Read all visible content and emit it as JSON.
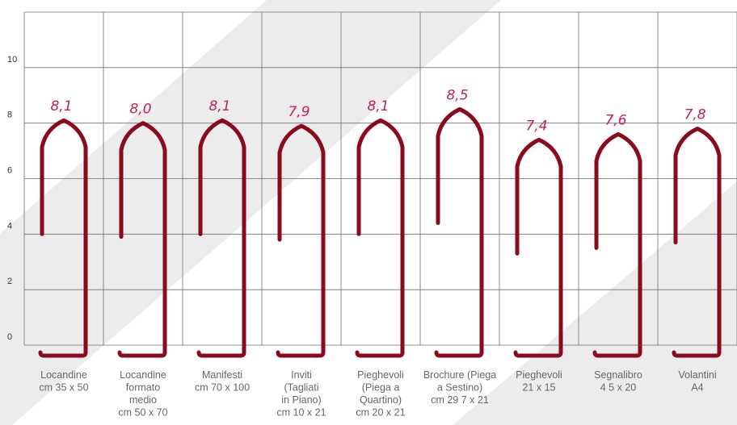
{
  "chart_data": {
    "type": "bar",
    "title": "",
    "xlabel": "",
    "ylabel": "",
    "ylim": [
      0,
      12
    ],
    "y_ticks": [
      "0",
      "2",
      "4",
      "6",
      "8",
      "10"
    ],
    "grid": true,
    "categories": [
      [
        "Locandine",
        "cm 35 x 50"
      ],
      [
        "Locandine",
        "formato",
        "medio",
        "cm 50 x 70"
      ],
      [
        "Manifesti",
        "cm 70 x 100"
      ],
      [
        "Inviti",
        "(Tagliati",
        "in Piano)",
        "cm 10 x 21"
      ],
      [
        "Pieghevoli",
        "(Piega a",
        "Quartino)",
        "cm 20 x 21"
      ],
      [
        "Brochure (Piega",
        "a Sestino)",
        "cm 29 7 x 21"
      ],
      [
        "Pieghevoli",
        "21 x 15"
      ],
      [
        "Segnalibro",
        "4 5 x 20"
      ],
      [
        "Volantini",
        "A4"
      ]
    ],
    "values": [
      8.1,
      8.0,
      8.1,
      7.9,
      8.1,
      8.5,
      7.4,
      7.6,
      7.8
    ],
    "value_labels": [
      "8,1",
      "8,0",
      "8,1",
      "7,9",
      "8,1",
      "8,5",
      "7,4",
      "7,6",
      "7,8"
    ],
    "colors": {
      "clip": "#8b0b1e",
      "value_text": "#c2224e",
      "grid": "#6e6e6e",
      "stripe": "#ececec"
    }
  }
}
